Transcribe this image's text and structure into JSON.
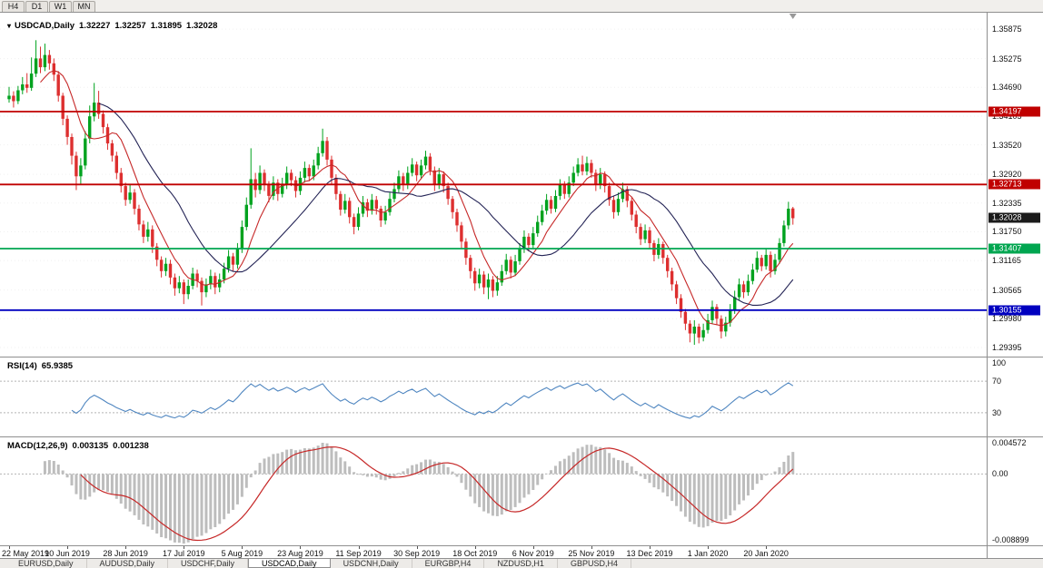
{
  "toolbar": {
    "periods": [
      "H4",
      "D1",
      "W1",
      "MN"
    ]
  },
  "chart_title": {
    "symbol": "USDCAD,Daily",
    "open": "1.32227",
    "high": "1.32257",
    "low": "1.31895",
    "close": "1.32028"
  },
  "bottom_tabs": {
    "items": [
      {
        "label": "EURUSD,Daily",
        "active": false
      },
      {
        "label": "AUDUSD,Daily",
        "active": false
      },
      {
        "label": "USDCHF,Daily",
        "active": false
      },
      {
        "label": "USDCAD,Daily",
        "active": true
      },
      {
        "label": "USDCNH,Daily",
        "active": false
      },
      {
        "label": "EURGBP,H4",
        "active": false
      },
      {
        "label": "NZDUSD,H1",
        "active": false
      },
      {
        "label": "GBPUSD,H4",
        "active": false
      }
    ]
  },
  "chart_data": {
    "type": "candlestick",
    "symbol": "USDCAD",
    "timeframe": "Daily",
    "ylim": [
      1.2921,
      1.3621
    ],
    "price_axis_ticks": [
      "1.35875",
      "1.35275",
      "1.34690",
      "1.34105",
      "1.33520",
      "1.32920",
      "1.32335",
      "1.31750",
      "1.31165",
      "1.30565",
      "1.29980",
      "1.29395"
    ],
    "x_axis_labels": [
      {
        "label": "22 May 2019",
        "index": 0
      },
      {
        "label": "10 Jun 2019",
        "index": 13
      },
      {
        "label": "28 Jun 2019",
        "index": 26
      },
      {
        "label": "17 Jul 2019",
        "index": 39
      },
      {
        "label": "5 Aug 2019",
        "index": 52
      },
      {
        "label": "23 Aug 2019",
        "index": 65
      },
      {
        "label": "11 Sep 2019",
        "index": 78
      },
      {
        "label": "30 Sep 2019",
        "index": 91
      },
      {
        "label": "18 Oct 2019",
        "index": 104
      },
      {
        "label": "6 Nov 2019",
        "index": 117
      },
      {
        "label": "25 Nov 2019",
        "index": 130
      },
      {
        "label": "13 Dec 2019",
        "index": 143
      },
      {
        "label": "1 Jan 2020",
        "index": 156
      },
      {
        "label": "20 Jan 2020",
        "index": 169
      }
    ],
    "hlines": [
      {
        "price": 1.34197,
        "label": "1.34197",
        "color": "#c00000"
      },
      {
        "price": 1.32713,
        "label": "1.32713",
        "color": "#c00000"
      },
      {
        "price": 1.31407,
        "label": "1.31407",
        "color": "#00a650"
      },
      {
        "price": 1.30155,
        "label": "1.30155",
        "color": "#0000c0"
      }
    ],
    "current_price": {
      "value": 1.32028,
      "label": "1.32028",
      "color": "#1b1b1b"
    },
    "up_color": "#00a21e",
    "down_color": "#dd2f2f",
    "ma_fast": {
      "period": 8,
      "color": "#c62828"
    },
    "ma_slow": {
      "period": 21,
      "color": "#232355"
    },
    "rsi": {
      "title": "RSI(14)",
      "value_label": "65.9385",
      "period": 14,
      "levels": [
        70,
        30
      ],
      "axis_labels": [
        "100",
        "70",
        "30"
      ],
      "range": [
        0,
        100
      ],
      "color": "#4f86c0"
    },
    "macd": {
      "title": "MACD(12,26,9)",
      "main_label": "0.003135",
      "signal_label": "0.001238",
      "fast": 12,
      "slow": 26,
      "signal": 9,
      "ylim": [
        -0.008899,
        0.004572
      ],
      "axis_labels": [
        "0.004572",
        "0.00",
        "-0.008899"
      ],
      "hist_color": "#bdbdbd",
      "signal_color": "#c62828"
    },
    "candles": [
      [
        1.3445,
        1.347,
        1.3438,
        1.3452
      ],
      [
        1.3452,
        1.3461,
        1.3428,
        1.3441
      ],
      [
        1.3441,
        1.3472,
        1.3435,
        1.3463
      ],
      [
        1.3463,
        1.349,
        1.3455,
        1.3475
      ],
      [
        1.3475,
        1.3498,
        1.3458,
        1.3468
      ],
      [
        1.3468,
        1.353,
        1.3462,
        1.3497
      ],
      [
        1.3497,
        1.3565,
        1.349,
        1.3528
      ],
      [
        1.3528,
        1.3552,
        1.3498,
        1.351
      ],
      [
        1.351,
        1.3558,
        1.3502,
        1.3535
      ],
      [
        1.3535,
        1.3545,
        1.3505,
        1.3518
      ],
      [
        1.3518,
        1.3528,
        1.3482,
        1.3495
      ],
      [
        1.3495,
        1.3502,
        1.344,
        1.3452
      ],
      [
        1.3452,
        1.3458,
        1.3392,
        1.3405
      ],
      [
        1.3405,
        1.3412,
        1.3352,
        1.3368
      ],
      [
        1.3368,
        1.3375,
        1.3312,
        1.333
      ],
      [
        1.333,
        1.3338,
        1.326,
        1.3288
      ],
      [
        1.3288,
        1.3325,
        1.3272,
        1.331
      ],
      [
        1.331,
        1.338,
        1.3302,
        1.3365
      ],
      [
        1.3365,
        1.3432,
        1.3355,
        1.341
      ],
      [
        1.341,
        1.3478,
        1.34,
        1.3438
      ],
      [
        1.3438,
        1.3462,
        1.3405,
        1.3415
      ],
      [
        1.3415,
        1.3422,
        1.3375,
        1.3388
      ],
      [
        1.3388,
        1.3395,
        1.3342,
        1.3355
      ],
      [
        1.3355,
        1.3362,
        1.3318,
        1.333
      ],
      [
        1.333,
        1.3338,
        1.3282,
        1.3295
      ],
      [
        1.3295,
        1.3305,
        1.3255,
        1.3268
      ],
      [
        1.3268,
        1.3275,
        1.3228,
        1.324
      ],
      [
        1.324,
        1.3272,
        1.3232,
        1.3255
      ],
      [
        1.3255,
        1.3262,
        1.321,
        1.3222
      ],
      [
        1.3222,
        1.323,
        1.3178,
        1.319
      ],
      [
        1.319,
        1.3198,
        1.3152,
        1.3165
      ],
      [
        1.3165,
        1.3195,
        1.3155,
        1.318
      ],
      [
        1.318,
        1.3188,
        1.3132,
        1.3145
      ],
      [
        1.3145,
        1.3152,
        1.3105,
        1.3118
      ],
      [
        1.3118,
        1.3125,
        1.3082,
        1.3095
      ],
      [
        1.3095,
        1.3122,
        1.3085,
        1.311
      ],
      [
        1.311,
        1.3118,
        1.3068,
        1.3082
      ],
      [
        1.3082,
        1.309,
        1.3045,
        1.306
      ],
      [
        1.306,
        1.3085,
        1.305,
        1.3072
      ],
      [
        1.3072,
        1.3078,
        1.3028,
        1.3048
      ],
      [
        1.3048,
        1.3078,
        1.3038,
        1.3065
      ],
      [
        1.3065,
        1.3102,
        1.3058,
        1.309
      ],
      [
        1.309,
        1.3098,
        1.3062,
        1.3075
      ],
      [
        1.3075,
        1.3082,
        1.3025,
        1.3052
      ],
      [
        1.3052,
        1.308,
        1.3042,
        1.3068
      ],
      [
        1.3068,
        1.3098,
        1.3058,
        1.3085
      ],
      [
        1.3085,
        1.3092,
        1.3048,
        1.3062
      ],
      [
        1.3062,
        1.309,
        1.3052,
        1.3078
      ],
      [
        1.3078,
        1.3112,
        1.307,
        1.31
      ],
      [
        1.31,
        1.3138,
        1.3092,
        1.3125
      ],
      [
        1.3125,
        1.3132,
        1.3095,
        1.3108
      ],
      [
        1.3108,
        1.3152,
        1.31,
        1.314
      ],
      [
        1.314,
        1.3198,
        1.3132,
        1.3185
      ],
      [
        1.3185,
        1.3245,
        1.3178,
        1.323
      ],
      [
        1.323,
        1.3345,
        1.3222,
        1.3282
      ],
      [
        1.3282,
        1.3295,
        1.3245,
        1.326
      ],
      [
        1.326,
        1.331,
        1.3252,
        1.3295
      ],
      [
        1.3295,
        1.3302,
        1.3258,
        1.327
      ],
      [
        1.327,
        1.3278,
        1.3235,
        1.3248
      ],
      [
        1.3248,
        1.3288,
        1.324,
        1.3275
      ],
      [
        1.3275,
        1.3282,
        1.3238,
        1.3252
      ],
      [
        1.3252,
        1.3285,
        1.3245,
        1.327
      ],
      [
        1.327,
        1.3308,
        1.3262,
        1.3295
      ],
      [
        1.3295,
        1.3302,
        1.3268,
        1.328
      ],
      [
        1.328,
        1.3288,
        1.3245,
        1.3258
      ],
      [
        1.3258,
        1.3298,
        1.325,
        1.3285
      ],
      [
        1.3285,
        1.3318,
        1.3275,
        1.3305
      ],
      [
        1.3305,
        1.3312,
        1.3278,
        1.3288
      ],
      [
        1.3288,
        1.3322,
        1.328,
        1.331
      ],
      [
        1.331,
        1.3348,
        1.3302,
        1.3335
      ],
      [
        1.3335,
        1.3385,
        1.3328,
        1.336
      ],
      [
        1.336,
        1.3368,
        1.331,
        1.3322
      ],
      [
        1.3322,
        1.333,
        1.3272,
        1.3285
      ],
      [
        1.3285,
        1.3292,
        1.324,
        1.3252
      ],
      [
        1.3252,
        1.3258,
        1.3208,
        1.322
      ],
      [
        1.322,
        1.3252,
        1.3212,
        1.3238
      ],
      [
        1.3238,
        1.3245,
        1.3192,
        1.3205
      ],
      [
        1.3205,
        1.3212,
        1.317,
        1.3185
      ],
      [
        1.3185,
        1.3225,
        1.3178,
        1.3212
      ],
      [
        1.3212,
        1.3248,
        1.3205,
        1.3235
      ],
      [
        1.3235,
        1.3242,
        1.3205,
        1.3218
      ],
      [
        1.3218,
        1.3252,
        1.321,
        1.324
      ],
      [
        1.324,
        1.3248,
        1.321,
        1.3222
      ],
      [
        1.3222,
        1.3228,
        1.3185,
        1.3198
      ],
      [
        1.3198,
        1.3228,
        1.319,
        1.3215
      ],
      [
        1.3215,
        1.3255,
        1.3208,
        1.3242
      ],
      [
        1.3242,
        1.3275,
        1.3235,
        1.3262
      ],
      [
        1.3262,
        1.33,
        1.3255,
        1.3288
      ],
      [
        1.3288,
        1.3295,
        1.3258,
        1.327
      ],
      [
        1.327,
        1.3308,
        1.3262,
        1.3295
      ],
      [
        1.3295,
        1.3325,
        1.3288,
        1.3312
      ],
      [
        1.3312,
        1.3318,
        1.3278,
        1.329
      ],
      [
        1.329,
        1.3322,
        1.3282,
        1.331
      ],
      [
        1.331,
        1.334,
        1.3302,
        1.3328
      ],
      [
        1.3328,
        1.3335,
        1.329,
        1.33
      ],
      [
        1.33,
        1.3308,
        1.3258,
        1.327
      ],
      [
        1.327,
        1.3305,
        1.3262,
        1.3292
      ],
      [
        1.3292,
        1.3298,
        1.3255,
        1.3268
      ],
      [
        1.3268,
        1.3275,
        1.323,
        1.3242
      ],
      [
        1.3242,
        1.3248,
        1.3202,
        1.3215
      ],
      [
        1.3215,
        1.3222,
        1.3175,
        1.3188
      ],
      [
        1.3188,
        1.3195,
        1.3142,
        1.3155
      ],
      [
        1.3155,
        1.3162,
        1.3108,
        1.3122
      ],
      [
        1.3122,
        1.3128,
        1.308,
        1.3095
      ],
      [
        1.3095,
        1.3102,
        1.3055,
        1.307
      ],
      [
        1.307,
        1.31,
        1.306,
        1.3088
      ],
      [
        1.3088,
        1.3095,
        1.3048,
        1.3062
      ],
      [
        1.3062,
        1.309,
        1.3038,
        1.3078
      ],
      [
        1.3078,
        1.3085,
        1.3042,
        1.3055
      ],
      [
        1.3055,
        1.3085,
        1.3045,
        1.3072
      ],
      [
        1.3072,
        1.3108,
        1.3065,
        1.3095
      ],
      [
        1.3095,
        1.313,
        1.3088,
        1.3118
      ],
      [
        1.3118,
        1.3125,
        1.308,
        1.3092
      ],
      [
        1.3092,
        1.3128,
        1.3085,
        1.3115
      ],
      [
        1.3115,
        1.3152,
        1.3108,
        1.314
      ],
      [
        1.314,
        1.3178,
        1.3132,
        1.3165
      ],
      [
        1.3165,
        1.3172,
        1.3135,
        1.3148
      ],
      [
        1.3148,
        1.3185,
        1.314,
        1.3172
      ],
      [
        1.3172,
        1.3208,
        1.3165,
        1.3195
      ],
      [
        1.3195,
        1.323,
        1.3188,
        1.3218
      ],
      [
        1.3218,
        1.3252,
        1.321,
        1.324
      ],
      [
        1.324,
        1.3248,
        1.3212,
        1.3222
      ],
      [
        1.3222,
        1.326,
        1.3215,
        1.3248
      ],
      [
        1.3248,
        1.3282,
        1.324,
        1.327
      ],
      [
        1.327,
        1.3278,
        1.3242,
        1.3252
      ],
      [
        1.3252,
        1.3288,
        1.3245,
        1.3275
      ],
      [
        1.3275,
        1.3308,
        1.3268,
        1.3295
      ],
      [
        1.3295,
        1.3325,
        1.3288,
        1.3312
      ],
      [
        1.3312,
        1.333,
        1.329,
        1.3298
      ],
      [
        1.3298,
        1.3328,
        1.329,
        1.3315
      ],
      [
        1.3315,
        1.3322,
        1.3285,
        1.3295
      ],
      [
        1.3295,
        1.3302,
        1.3258,
        1.327
      ],
      [
        1.327,
        1.3305,
        1.3262,
        1.3292
      ],
      [
        1.3292,
        1.3298,
        1.3255,
        1.3268
      ],
      [
        1.3268,
        1.3275,
        1.3228,
        1.324
      ],
      [
        1.324,
        1.3248,
        1.3202,
        1.3215
      ],
      [
        1.3215,
        1.3255,
        1.3208,
        1.3242
      ],
      [
        1.3242,
        1.3275,
        1.3235,
        1.3262
      ],
      [
        1.3262,
        1.3268,
        1.3225,
        1.3238
      ],
      [
        1.3238,
        1.3245,
        1.3198,
        1.321
      ],
      [
        1.321,
        1.3218,
        1.3172,
        1.3185
      ],
      [
        1.3185,
        1.3192,
        1.3148,
        1.316
      ],
      [
        1.316,
        1.319,
        1.3152,
        1.3178
      ],
      [
        1.3178,
        1.3185,
        1.314,
        1.3152
      ],
      [
        1.3152,
        1.3158,
        1.3115,
        1.3128
      ],
      [
        1.3128,
        1.3162,
        1.312,
        1.315
      ],
      [
        1.315,
        1.3155,
        1.311,
        1.3122
      ],
      [
        1.3122,
        1.3128,
        1.3082,
        1.3095
      ],
      [
        1.3095,
        1.3102,
        1.3055,
        1.3068
      ],
      [
        1.3068,
        1.3075,
        1.3028,
        1.304
      ],
      [
        1.304,
        1.3048,
        1.3,
        1.3012
      ],
      [
        1.3012,
        1.3018,
        1.2975,
        1.2988
      ],
      [
        1.2988,
        1.2995,
        1.295,
        1.2968
      ],
      [
        1.2968,
        1.2995,
        1.2945,
        1.2982
      ],
      [
        1.2982,
        1.2988,
        1.2948,
        1.296
      ],
      [
        1.296,
        1.2988,
        1.2952,
        1.2975
      ],
      [
        1.2975,
        1.3008,
        1.2968,
        1.2995
      ],
      [
        1.2995,
        1.3035,
        1.2988,
        1.3022
      ],
      [
        1.3022,
        1.3028,
        1.2985,
        1.2998
      ],
      [
        1.2998,
        1.3005,
        1.2958,
        1.2972
      ],
      [
        1.2972,
        1.3002,
        1.2962,
        1.299
      ],
      [
        1.299,
        1.3028,
        1.2982,
        1.3015
      ],
      [
        1.3015,
        1.3055,
        1.3008,
        1.3042
      ],
      [
        1.3042,
        1.308,
        1.3035,
        1.3068
      ],
      [
        1.3068,
        1.3075,
        1.304,
        1.3052
      ],
      [
        1.3052,
        1.3088,
        1.3045,
        1.3075
      ],
      [
        1.3075,
        1.311,
        1.3068,
        1.3098
      ],
      [
        1.3098,
        1.3135,
        1.3092,
        1.3122
      ],
      [
        1.3122,
        1.3128,
        1.3095,
        1.3105
      ],
      [
        1.3105,
        1.314,
        1.3098,
        1.3128
      ],
      [
        1.3128,
        1.3135,
        1.3082,
        1.3095
      ],
      [
        1.3095,
        1.313,
        1.3088,
        1.3118
      ],
      [
        1.3118,
        1.3162,
        1.311,
        1.3152
      ],
      [
        1.3152,
        1.3198,
        1.3145,
        1.3188
      ],
      [
        1.3188,
        1.3236,
        1.318,
        1.3222
      ],
      [
        1.32227,
        1.32257,
        1.31895,
        1.32028
      ]
    ]
  }
}
